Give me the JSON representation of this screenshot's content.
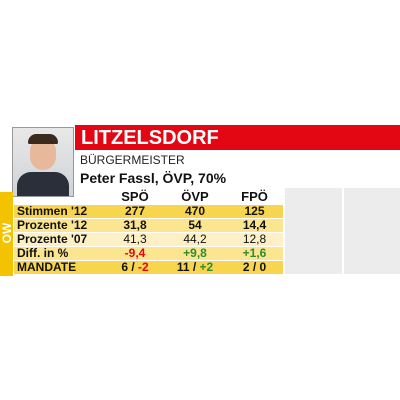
{
  "header": {
    "title": "LITZELSDORF",
    "role": "BÜRGERMEISTER",
    "mayor": "Peter Fassl, ÖVP, 70%"
  },
  "side_label": "OW",
  "table": {
    "columns": [
      "SPÖ",
      "ÖVP",
      "FPÖ"
    ],
    "rows": [
      {
        "label": "Stimmen '12",
        "cells": [
          "277",
          "470",
          "125"
        ],
        "bold": true,
        "background": "#f7d54e"
      },
      {
        "label": "Prozente '12",
        "cells": [
          "31,8",
          "54",
          "14,4"
        ],
        "bold": true,
        "background": "#fbe58f"
      },
      {
        "label": "Prozente '07",
        "cells": [
          "41,3",
          "44,2",
          "12,8"
        ],
        "bold": false,
        "background": "#fdf0c4"
      },
      {
        "label": "Diff. in %",
        "cells": [
          "-9,4",
          "+9,8",
          "+1,6"
        ],
        "bold": true,
        "background": "#fbe58f",
        "colors": [
          "#e30613",
          "#2e8b2e",
          "#2e8b2e"
        ]
      },
      {
        "label": "MANDATE",
        "cells": [
          {
            "text": "6 /",
            "change": "-2",
            "color": "#e30613"
          },
          {
            "text": "11 /",
            "change": "+2",
            "color": "#2e8b2e"
          },
          {
            "text": "2 /",
            "change": "0",
            "color": "#111"
          }
        ],
        "bold": true,
        "background": "#f7d54e"
      }
    ]
  }
}
